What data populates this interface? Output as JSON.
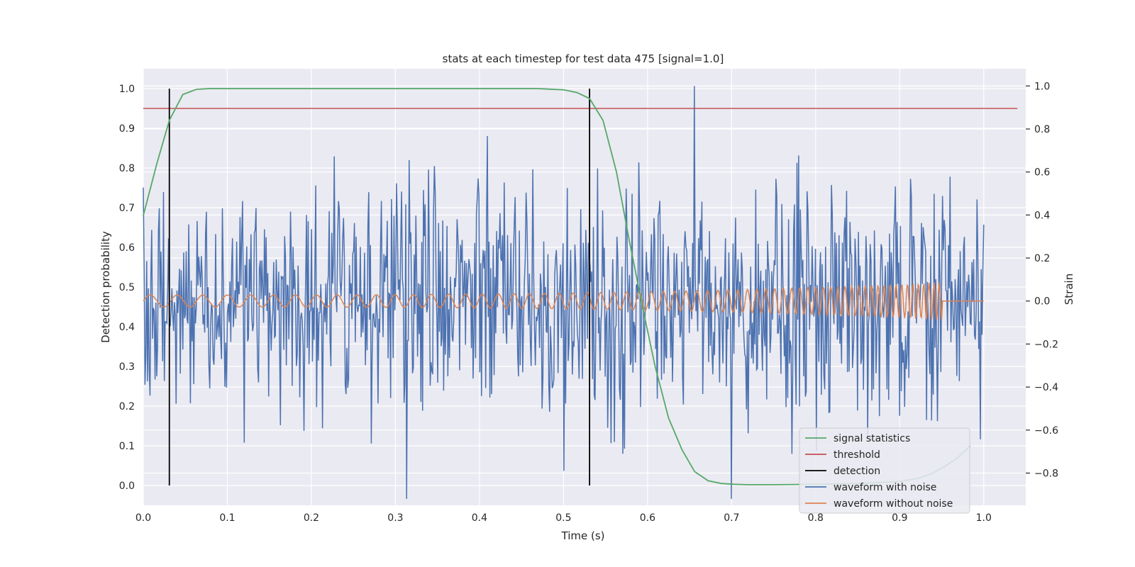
{
  "chart_data": {
    "type": "line",
    "title": "stats at each timestep for test data 475 [signal=1.0]",
    "xlabel": "Time (s)",
    "ylabel_left": "Detection probability",
    "ylabel_right": "Strain",
    "xlim": [
      0.0,
      1.05
    ],
    "ylim_left": [
      -0.05,
      1.05
    ],
    "ylim_right": [
      -0.95,
      1.08
    ],
    "x_ticks": [
      "0.0",
      "0.1",
      "0.2",
      "0.3",
      "0.4",
      "0.5",
      "0.6",
      "0.7",
      "0.8",
      "0.9",
      "1.0"
    ],
    "x_tick_values": [
      0,
      0.1,
      0.2,
      0.3,
      0.4,
      0.5,
      0.6,
      0.7,
      0.8,
      0.9,
      1.0
    ],
    "y_left_ticks": [
      "0.0",
      "0.1",
      "0.2",
      "0.3",
      "0.4",
      "0.5",
      "0.6",
      "0.7",
      "0.8",
      "0.9",
      "1.0"
    ],
    "y_left_tick_values": [
      0,
      0.1,
      0.2,
      0.3,
      0.4,
      0.5,
      0.6,
      0.7,
      0.8,
      0.9,
      1.0
    ],
    "y_right_ticks": [
      "−0.8",
      "−0.6",
      "−0.4",
      "−0.2",
      "0.0",
      "0.2",
      "0.4",
      "0.6",
      "0.8",
      "1.0"
    ],
    "y_right_tick_values": [
      -0.8,
      -0.6,
      -0.4,
      -0.2,
      0,
      0.2,
      0.4,
      0.6,
      0.8,
      1.0
    ],
    "grid": true,
    "legend_placement": "lower-right",
    "series": [
      {
        "name": "signal statistics",
        "axis": "left",
        "color": "#55a868",
        "x": [
          0.0,
          0.016,
          0.031,
          0.047,
          0.063,
          0.078,
          0.094,
          0.109,
          0.125,
          0.2,
          0.3,
          0.4,
          0.469,
          0.5,
          0.516,
          0.531,
          0.547,
          0.563,
          0.578,
          0.594,
          0.609,
          0.625,
          0.641,
          0.656,
          0.672,
          0.688,
          0.703,
          0.719,
          0.734,
          0.75,
          0.8,
          0.85,
          0.9,
          0.922,
          0.938,
          0.953,
          0.969,
          0.984
        ],
        "y": [
          0.68,
          0.81,
          0.92,
          0.985,
          0.998,
          1.0,
          1.0,
          1.0,
          1.0,
          1.0,
          1.0,
          1.0,
          1.0,
          0.997,
          0.99,
          0.975,
          0.92,
          0.79,
          0.62,
          0.45,
          0.3,
          0.17,
          0.09,
          0.035,
          0.012,
          0.005,
          0.003,
          0.002,
          0.002,
          0.002,
          0.003,
          0.005,
          0.01,
          0.018,
          0.03,
          0.047,
          0.07,
          0.1
        ]
      },
      {
        "name": "threshold",
        "axis": "left",
        "color": "#c44e52",
        "x": [
          0.0,
          1.04
        ],
        "y": [
          0.95,
          0.95
        ]
      },
      {
        "name": "detection",
        "axis": "left",
        "color": "#000000",
        "x_positions": [
          0.031,
          0.531
        ],
        "y_range": [
          0.0,
          1.0
        ]
      },
      {
        "name": "waveform with noise",
        "axis": "right",
        "color": "#4c72b0",
        "x_range": [
          0.0,
          1.0
        ],
        "n_points": 1000,
        "y_range": [
          -0.92,
          1.0
        ]
      },
      {
        "name": "waveform without noise",
        "axis": "right",
        "color": "#dd8452",
        "x_range": [
          0.0,
          1.0
        ],
        "n_points": 1000,
        "y_range": [
          -0.1,
          0.11
        ]
      }
    ]
  },
  "legend": {
    "items": [
      {
        "label": "signal statistics",
        "color": "#55a868"
      },
      {
        "label": "threshold",
        "color": "#c44e52"
      },
      {
        "label": "detection",
        "color": "#000000"
      },
      {
        "label": "waveform with noise",
        "color": "#4c72b0"
      },
      {
        "label": "waveform without noise",
        "color": "#dd8452"
      }
    ]
  }
}
